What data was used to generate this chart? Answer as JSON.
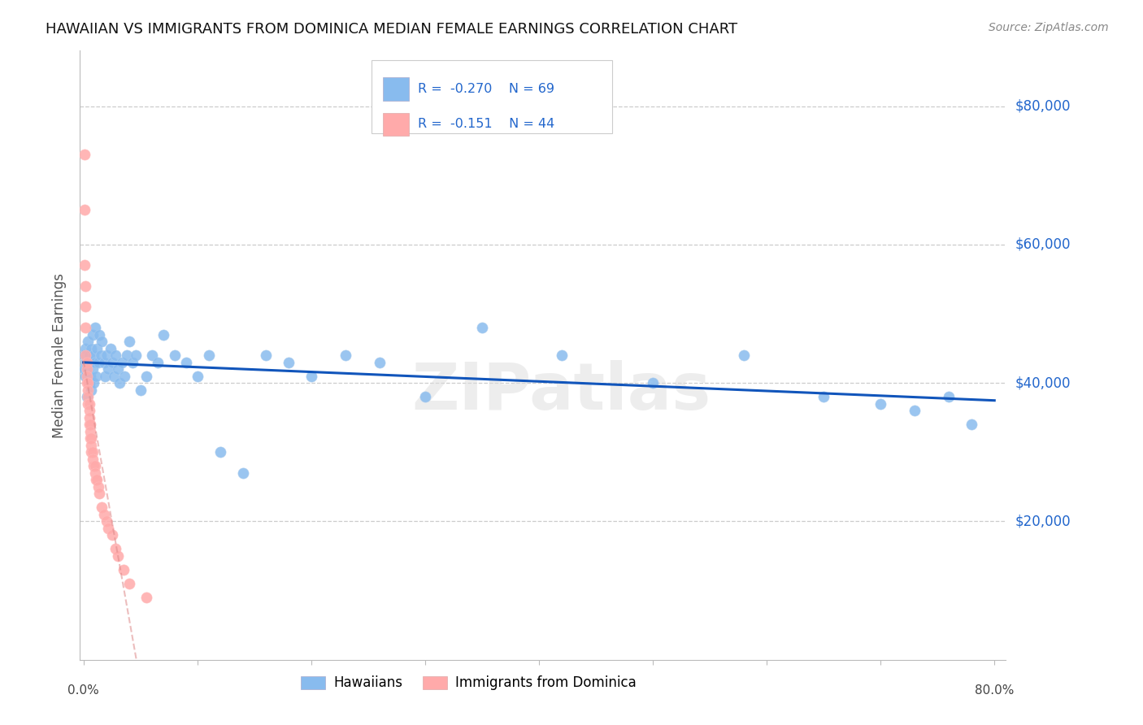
{
  "title": "HAWAIIAN VS IMMIGRANTS FROM DOMINICA MEDIAN FEMALE EARNINGS CORRELATION CHART",
  "source": "Source: ZipAtlas.com",
  "ylabel": "Median Female Earnings",
  "ytick_labels": [
    "$20,000",
    "$40,000",
    "$60,000",
    "$80,000"
  ],
  "ytick_values": [
    20000,
    40000,
    60000,
    80000
  ],
  "ymin": 0,
  "ymax": 88000,
  "xmin": -0.003,
  "xmax": 0.81,
  "hawaiians_R": "-0.270",
  "hawaiians_N": "69",
  "dominica_R": "-0.151",
  "dominica_N": "44",
  "legend_label1": "Hawaiians",
  "legend_label2": "Immigrants from Dominica",
  "blue_color": "#88bbee",
  "blue_line_color": "#1155bb",
  "pink_color": "#ffaaaa",
  "pink_line_color": "#dd8888",
  "watermark_text": "ZIPatlas",
  "background_color": "#ffffff",
  "grid_color": "#cccccc",
  "hawaiians_x": [
    0.001,
    0.001,
    0.002,
    0.002,
    0.002,
    0.003,
    0.003,
    0.004,
    0.004,
    0.005,
    0.005,
    0.006,
    0.006,
    0.007,
    0.007,
    0.008,
    0.008,
    0.009,
    0.009,
    0.01,
    0.01,
    0.011,
    0.012,
    0.013,
    0.014,
    0.015,
    0.016,
    0.018,
    0.019,
    0.02,
    0.022,
    0.024,
    0.025,
    0.027,
    0.028,
    0.03,
    0.032,
    0.034,
    0.036,
    0.038,
    0.04,
    0.043,
    0.046,
    0.05,
    0.055,
    0.06,
    0.065,
    0.07,
    0.08,
    0.09,
    0.1,
    0.11,
    0.12,
    0.14,
    0.16,
    0.18,
    0.2,
    0.23,
    0.26,
    0.3,
    0.35,
    0.42,
    0.5,
    0.58,
    0.65,
    0.7,
    0.73,
    0.76,
    0.78
  ],
  "hawaiians_y": [
    42000,
    44000,
    41000,
    43000,
    45000,
    38000,
    42000,
    43000,
    46000,
    40000,
    44000,
    41000,
    43000,
    45000,
    39000,
    47000,
    42000,
    44000,
    40000,
    43000,
    48000,
    41000,
    45000,
    43000,
    47000,
    44000,
    46000,
    43000,
    41000,
    44000,
    42000,
    45000,
    43000,
    41000,
    44000,
    42000,
    40000,
    43000,
    41000,
    44000,
    46000,
    43000,
    44000,
    39000,
    41000,
    44000,
    43000,
    47000,
    44000,
    43000,
    41000,
    44000,
    30000,
    27000,
    44000,
    43000,
    41000,
    44000,
    43000,
    38000,
    48000,
    44000,
    40000,
    44000,
    38000,
    37000,
    36000,
    38000,
    34000
  ],
  "dominica_x": [
    0.001,
    0.001,
    0.001,
    0.002,
    0.002,
    0.002,
    0.002,
    0.003,
    0.003,
    0.003,
    0.003,
    0.004,
    0.004,
    0.004,
    0.004,
    0.005,
    0.005,
    0.005,
    0.005,
    0.006,
    0.006,
    0.006,
    0.007,
    0.007,
    0.007,
    0.008,
    0.008,
    0.009,
    0.01,
    0.01,
    0.011,
    0.012,
    0.013,
    0.014,
    0.016,
    0.018,
    0.02,
    0.022,
    0.025,
    0.028,
    0.03,
    0.035,
    0.04,
    0.055
  ],
  "dominica_y": [
    73000,
    65000,
    57000,
    54000,
    51000,
    48000,
    44000,
    43000,
    42000,
    41000,
    40000,
    40000,
    39000,
    38000,
    37000,
    37000,
    36000,
    35000,
    34000,
    34000,
    33000,
    32000,
    32000,
    31000,
    30000,
    30000,
    29000,
    28000,
    28000,
    27000,
    26000,
    26000,
    25000,
    24000,
    22000,
    21000,
    20000,
    19000,
    18000,
    16000,
    15000,
    13000,
    11000,
    9000
  ]
}
